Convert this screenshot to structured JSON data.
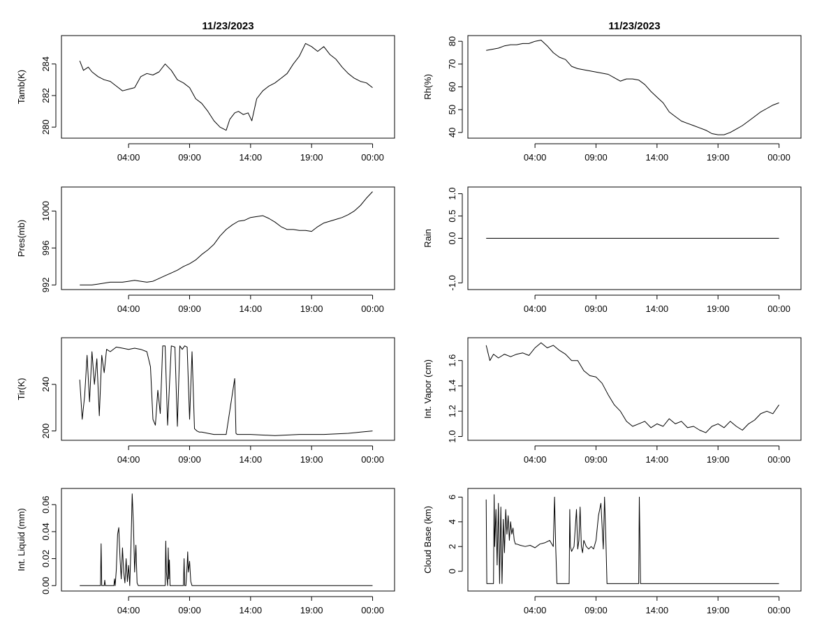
{
  "colors": {
    "line": "#000000",
    "background": "#ffffff"
  },
  "chart_data": [
    {
      "type": "line",
      "title": "11/23/2023",
      "ylabel": "Tamb(K)",
      "xlim": [
        -1.5,
        25.8
      ],
      "ylim": [
        279.3,
        285.8
      ],
      "x_ticks": [
        [
          4,
          "04:00"
        ],
        [
          9,
          "09:00"
        ],
        [
          14,
          "14:00"
        ],
        [
          19,
          "19:00"
        ],
        [
          24,
          "00:00"
        ]
      ],
      "y_ticks": [
        [
          280,
          "280"
        ],
        [
          282,
          "282"
        ],
        [
          284,
          "284"
        ]
      ],
      "grid": false,
      "series": [
        {
          "x": [
            0,
            0.3,
            0.7,
            1,
            1.5,
            2,
            2.5,
            3,
            3.5,
            4,
            4.5,
            5,
            5.5,
            6,
            6.5,
            7,
            7.5,
            8,
            8.5,
            9,
            9.5,
            10,
            10.5,
            11,
            11.5,
            12,
            12.3,
            12.7,
            13,
            13.4,
            13.8,
            14.1,
            14.5,
            15,
            15.5,
            16,
            16.5,
            17,
            17.5,
            18,
            18.5,
            19,
            19.5,
            20,
            20.5,
            21,
            21.5,
            22,
            22.5,
            23,
            23.5,
            24
          ],
          "y": [
            284.2,
            283.6,
            283.8,
            283.5,
            283.2,
            283.0,
            282.9,
            282.6,
            282.3,
            282.4,
            282.5,
            283.2,
            283.4,
            283.3,
            283.5,
            284.0,
            283.6,
            283.0,
            282.8,
            282.5,
            281.8,
            281.5,
            281.0,
            280.4,
            280.0,
            279.8,
            280.5,
            280.9,
            281.0,
            280.8,
            280.9,
            280.4,
            281.8,
            282.3,
            282.6,
            282.8,
            283.1,
            283.4,
            284.0,
            284.5,
            285.3,
            285.1,
            284.8,
            285.1,
            284.6,
            284.3,
            283.8,
            283.4,
            283.1,
            282.9,
            282.8,
            282.5
          ]
        }
      ]
    },
    {
      "type": "line",
      "title": "11/23/2023",
      "ylabel": "Rh(%)",
      "xlim": [
        -1.5,
        25.8
      ],
      "ylim": [
        37.5,
        82.5
      ],
      "x_ticks": [
        [
          4,
          "04:00"
        ],
        [
          9,
          "09:00"
        ],
        [
          14,
          "14:00"
        ],
        [
          19,
          "19:00"
        ],
        [
          24,
          "00:00"
        ]
      ],
      "y_ticks": [
        [
          40,
          "40"
        ],
        [
          50,
          "50"
        ],
        [
          60,
          "60"
        ],
        [
          70,
          "70"
        ],
        [
          80,
          "80"
        ]
      ],
      "grid": false,
      "series": [
        {
          "x": [
            0,
            0.5,
            1,
            1.5,
            2,
            2.5,
            3,
            3.5,
            4,
            4.5,
            5,
            5.5,
            6,
            6.5,
            7,
            7.5,
            8,
            8.5,
            9,
            9.5,
            10,
            10.5,
            11,
            11.5,
            12,
            12.5,
            13,
            13.5,
            14,
            14.5,
            15,
            15.5,
            16,
            16.5,
            17,
            17.5,
            18,
            18.5,
            19,
            19.5,
            20,
            20.5,
            21,
            21.5,
            22,
            22.5,
            23,
            23.5,
            24
          ],
          "y": [
            76,
            76.5,
            77,
            78,
            78.5,
            78.5,
            79,
            79,
            80,
            80.5,
            78,
            75,
            73,
            72,
            69,
            68,
            67.5,
            67,
            66.5,
            66,
            65.5,
            64,
            62.5,
            63.5,
            63.5,
            63,
            61,
            58,
            55.5,
            53,
            49,
            47,
            45,
            44,
            43,
            42,
            41,
            39.5,
            39,
            39,
            40,
            41.5,
            43,
            45,
            47,
            49,
            50.5,
            52,
            53
          ]
        }
      ]
    },
    {
      "type": "line",
      "title": "",
      "ylabel": "Pres(mb)",
      "xlim": [
        -1.5,
        25.8
      ],
      "ylim": [
        991.5,
        1002.6
      ],
      "x_ticks": [
        [
          4,
          "04:00"
        ],
        [
          9,
          "09:00"
        ],
        [
          14,
          "14:00"
        ],
        [
          19,
          "19:00"
        ],
        [
          24,
          "00:00"
        ]
      ],
      "y_ticks": [
        [
          992,
          "992"
        ],
        [
          996,
          "996"
        ],
        [
          1000,
          "1000"
        ]
      ],
      "grid": false,
      "series": [
        {
          "x": [
            0,
            0.5,
            1,
            1.5,
            2,
            2.5,
            3,
            3.5,
            4,
            4.5,
            5,
            5.5,
            6,
            6.5,
            7,
            7.5,
            8,
            8.5,
            9,
            9.5,
            10,
            10.5,
            11,
            11.5,
            12,
            12.5,
            13,
            13.5,
            14,
            14.5,
            15,
            15.5,
            16,
            16.5,
            17,
            17.5,
            18,
            18.5,
            19,
            19.5,
            20,
            20.5,
            21,
            21.5,
            22,
            22.5,
            23,
            23.5,
            24
          ],
          "y": [
            992.0,
            992.0,
            992.0,
            992.1,
            992.2,
            992.3,
            992.3,
            992.3,
            992.4,
            992.5,
            992.4,
            992.3,
            992.4,
            992.7,
            993.0,
            993.3,
            993.6,
            994.0,
            994.3,
            994.7,
            995.3,
            995.8,
            996.4,
            997.3,
            998.0,
            998.5,
            998.9,
            999.0,
            999.3,
            999.4,
            999.5,
            999.2,
            998.8,
            998.3,
            998.0,
            998.0,
            997.9,
            997.9,
            997.8,
            998.3,
            998.7,
            998.9,
            999.1,
            999.3,
            999.6,
            1000.0,
            1000.6,
            1001.4,
            1002.1
          ]
        }
      ]
    },
    {
      "type": "line",
      "title": "",
      "ylabel": "Rain",
      "xlim": [
        -1.5,
        25.8
      ],
      "ylim": [
        -1.15,
        1.15
      ],
      "x_ticks": [
        [
          4,
          "04:00"
        ],
        [
          9,
          "09:00"
        ],
        [
          14,
          "14:00"
        ],
        [
          19,
          "19:00"
        ],
        [
          24,
          "00:00"
        ]
      ],
      "y_ticks": [
        [
          -1,
          "-1.0"
        ],
        [
          0,
          "0.0"
        ],
        [
          0.5,
          "0.5"
        ],
        [
          1,
          "1.0"
        ]
      ],
      "grid": false,
      "series": [
        {
          "x": [
            0,
            24
          ],
          "y": [
            0,
            0
          ]
        }
      ]
    },
    {
      "type": "line",
      "title": "",
      "ylabel": "Tir(K)",
      "xlim": [
        -1.5,
        25.8
      ],
      "ylim": [
        192,
        280
      ],
      "x_ticks": [
        [
          4,
          "04:00"
        ],
        [
          9,
          "09:00"
        ],
        [
          14,
          "14:00"
        ],
        [
          19,
          "19:00"
        ],
        [
          24,
          "00:00"
        ]
      ],
      "y_ticks": [
        [
          200,
          "200"
        ],
        [
          240,
          "240"
        ]
      ],
      "grid": false,
      "series": [
        {
          "x": [
            0,
            0.2,
            0.4,
            0.6,
            0.8,
            1,
            1.2,
            1.4,
            1.6,
            1.8,
            2,
            2.2,
            2.5,
            3,
            3.5,
            4,
            4.5,
            5,
            5.5,
            5.8,
            6,
            6.2,
            6.4,
            6.6,
            6.8,
            7,
            7.2,
            7.5,
            7.8,
            8,
            8.2,
            8.4,
            8.6,
            8.8,
            9,
            9.2,
            9.4,
            9.6,
            9.8,
            10,
            10.5,
            11,
            12,
            12.7,
            12.8,
            12.9,
            13.1,
            14,
            16,
            18,
            20,
            22,
            23,
            24
          ],
          "y": [
            244,
            210,
            230,
            265,
            225,
            268,
            240,
            262,
            213,
            265,
            250,
            270,
            268,
            272,
            271,
            270,
            271,
            270,
            268,
            255,
            210,
            205,
            235,
            215,
            273,
            273,
            205,
            273,
            272,
            204,
            273,
            270,
            273,
            272,
            210,
            268,
            202,
            200,
            199,
            199,
            198,
            197,
            197,
            245,
            198,
            197,
            197,
            197,
            196,
            197,
            197,
            198,
            199,
            200
          ]
        }
      ]
    },
    {
      "type": "line",
      "title": "",
      "ylabel": "Int. Vapor (cm)",
      "xlim": [
        -1.5,
        25.8
      ],
      "ylim": [
        0.97,
        1.78
      ],
      "x_ticks": [
        [
          4,
          "04:00"
        ],
        [
          9,
          "09:00"
        ],
        [
          14,
          "14:00"
        ],
        [
          19,
          "19:00"
        ],
        [
          24,
          "00:00"
        ]
      ],
      "y_ticks": [
        [
          1.0,
          "1.0"
        ],
        [
          1.2,
          "1.2"
        ],
        [
          1.4,
          "1.4"
        ],
        [
          1.6,
          "1.6"
        ]
      ],
      "grid": false,
      "series": [
        {
          "x": [
            0,
            0.3,
            0.6,
            1,
            1.5,
            2,
            2.5,
            3,
            3.5,
            4,
            4.5,
            5,
            5.5,
            6,
            6.5,
            7,
            7.5,
            8,
            8.5,
            9,
            9.5,
            10,
            10.5,
            11,
            11.5,
            12,
            12.5,
            13,
            13.5,
            14,
            14.5,
            15,
            15.5,
            16,
            16.5,
            17,
            17.5,
            18,
            18.5,
            19,
            19.5,
            20,
            20.5,
            21,
            21.5,
            22,
            22.5,
            23,
            23.5,
            24
          ],
          "y": [
            1.72,
            1.6,
            1.65,
            1.62,
            1.65,
            1.63,
            1.65,
            1.66,
            1.64,
            1.7,
            1.74,
            1.7,
            1.72,
            1.68,
            1.65,
            1.6,
            1.6,
            1.52,
            1.48,
            1.47,
            1.42,
            1.33,
            1.25,
            1.2,
            1.12,
            1.08,
            1.1,
            1.12,
            1.07,
            1.1,
            1.08,
            1.14,
            1.1,
            1.12,
            1.07,
            1.08,
            1.05,
            1.03,
            1.08,
            1.1,
            1.07,
            1.12,
            1.08,
            1.05,
            1.1,
            1.13,
            1.18,
            1.2,
            1.18,
            1.25
          ]
        }
      ]
    },
    {
      "type": "line",
      "title": "",
      "ylabel": "Int. Liquid (mm)",
      "xlim": [
        -1.5,
        25.8
      ],
      "ylim": [
        -0.004,
        0.072
      ],
      "x_ticks": [
        [
          4,
          "04:00"
        ],
        [
          9,
          "09:00"
        ],
        [
          14,
          "14:00"
        ],
        [
          19,
          "19:00"
        ],
        [
          24,
          "00:00"
        ]
      ],
      "y_ticks": [
        [
          0,
          "0.00"
        ],
        [
          0.02,
          "0.02"
        ],
        [
          0.04,
          "0.04"
        ],
        [
          0.06,
          "0.06"
        ]
      ],
      "grid": false,
      "series": [
        {
          "x": [
            0,
            1.7,
            1.75,
            1.8,
            1.85,
            2.0,
            2.05,
            2.1,
            2.8,
            2.85,
            2.9,
            3.0,
            3.1,
            3.2,
            3.3,
            3.4,
            3.5,
            3.6,
            3.7,
            3.8,
            3.9,
            4.0,
            4.1,
            4.2,
            4.3,
            4.4,
            4.5,
            4.6,
            4.7,
            4.8,
            7.0,
            7.05,
            7.1,
            7.2,
            7.25,
            7.3,
            7.35,
            7.4,
            7.5,
            8.5,
            8.55,
            8.6,
            8.7,
            8.8,
            8.85,
            8.9,
            9.0,
            9.1,
            9.2,
            24
          ],
          "y": [
            0,
            0,
            0.031,
            0,
            0,
            0,
            0.004,
            0,
            0,
            0.005,
            0,
            0.012,
            0.038,
            0.043,
            0.02,
            0.005,
            0.028,
            0.01,
            0.002,
            0.02,
            0.003,
            0.015,
            0,
            0.03,
            0.068,
            0.045,
            0.01,
            0.03,
            0.002,
            0,
            0,
            0.033,
            0.01,
            0,
            0.028,
            0.005,
            0.019,
            0,
            0,
            0,
            0.02,
            0,
            0,
            0.015,
            0.025,
            0.01,
            0.018,
            0.003,
            0,
            0
          ]
        }
      ]
    },
    {
      "type": "line",
      "title": "",
      "ylabel": "Cloud Base (km)",
      "xlim": [
        -1.5,
        25.8
      ],
      "ylim": [
        -1.6,
        6.7
      ],
      "x_ticks": [
        [
          4,
          "04:00"
        ],
        [
          9,
          "09:00"
        ],
        [
          14,
          "14:00"
        ],
        [
          19,
          "19:00"
        ],
        [
          24,
          "00:00"
        ]
      ],
      "y_ticks": [
        [
          0,
          "0"
        ],
        [
          2,
          "2"
        ],
        [
          4,
          "4"
        ],
        [
          6,
          "6"
        ]
      ],
      "grid": false,
      "series": [
        {
          "x": [
            0,
            0.05,
            0.1,
            0.15,
            0.6,
            0.65,
            0.7,
            0.8,
            0.9,
            1.0,
            1.1,
            1.2,
            1.3,
            1.4,
            1.5,
            1.6,
            1.7,
            1.8,
            1.9,
            2.0,
            2.1,
            2.2,
            2.3,
            2.4,
            2.5,
            2.8,
            3.2,
            3.6,
            4.0,
            4.4,
            4.8,
            5.2,
            5.5,
            5.6,
            5.7,
            5.8,
            5.9,
            6.0,
            6.1,
            6.2,
            6.8,
            6.85,
            6.9,
            7.0,
            7.2,
            7.4,
            7.5,
            7.6,
            7.7,
            7.8,
            7.9,
            8.0,
            8.2,
            8.4,
            8.6,
            8.8,
            9.0,
            9.2,
            9.4,
            9.6,
            9.7,
            9.8,
            9.9,
            10.0,
            10.1,
            10.2,
            12.5,
            12.55,
            12.6,
            12.65,
            12.7,
            24
          ],
          "y": [
            5.8,
            -1,
            -1,
            -1,
            -1,
            6.2,
            2,
            5,
            0.5,
            5.5,
            -1,
            5.2,
            -1,
            4.2,
            1.5,
            5.0,
            3.0,
            4.5,
            2.5,
            4.0,
            3.0,
            3.5,
            2.5,
            2.2,
            2.2,
            2.1,
            2.0,
            2.1,
            1.9,
            2.2,
            2.3,
            2.5,
            2.0,
            6.0,
            1.9,
            -1,
            -1,
            -1,
            -1,
            -1,
            -1,
            5.0,
            2.0,
            1.6,
            2.0,
            5.0,
            1.8,
            2.5,
            5.2,
            2.0,
            1.5,
            2.5,
            2.0,
            1.8,
            2.0,
            1.8,
            2.5,
            4.5,
            5.5,
            1.8,
            6.0,
            3.0,
            -1,
            -1,
            -1,
            -1,
            -1,
            6.0,
            2.5,
            -1,
            -1,
            -1
          ]
        }
      ]
    }
  ]
}
